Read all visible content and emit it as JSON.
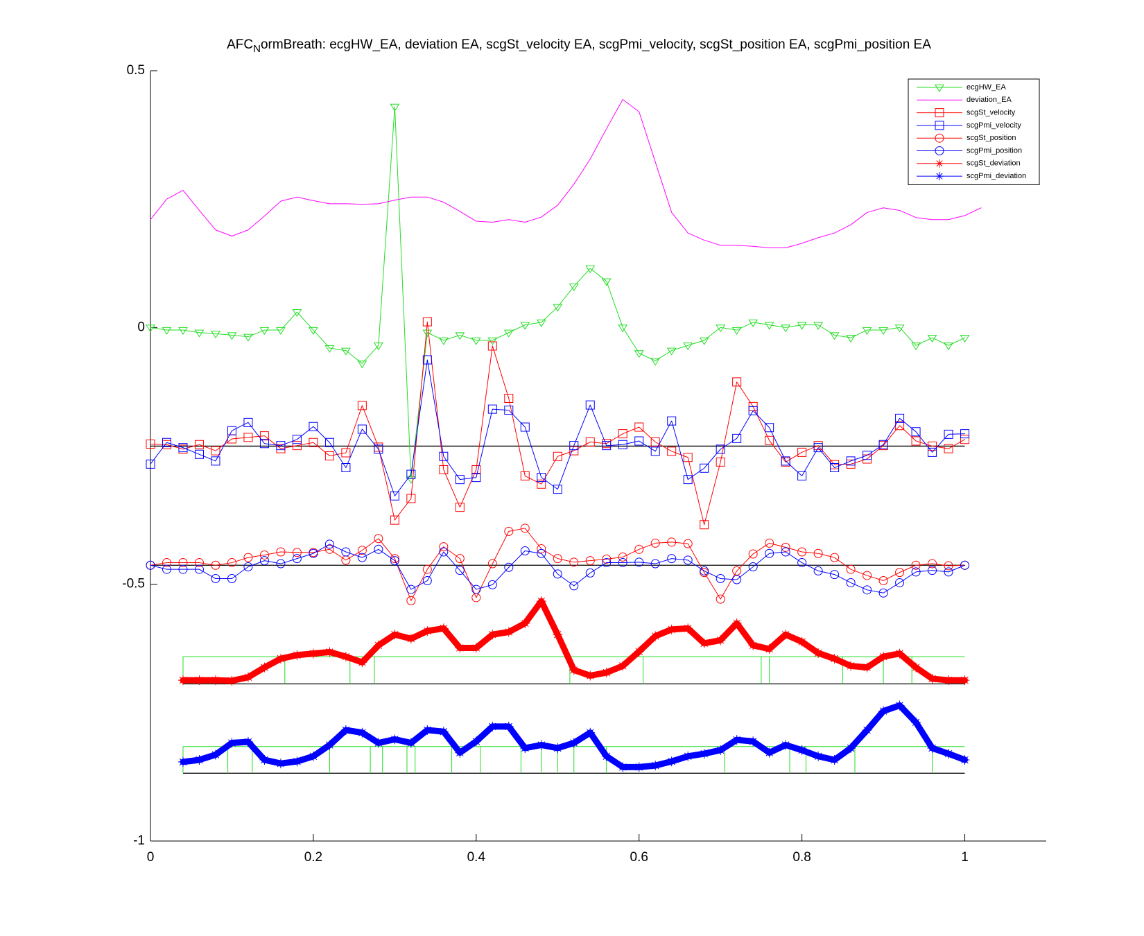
{
  "chart_data": {
    "type": "line",
    "title": {
      "before": "AFC",
      "subscript": "N",
      "after": "ormBreath: ecgHW_EA, deviation EA, scgSt_velocity EA, scgPmi_velocity, scgSt_position EA, scgPmi_position EA"
    },
    "xlim": [
      0,
      1.1
    ],
    "ylim": [
      -1,
      0.5
    ],
    "xticks": [
      0,
      0.2,
      0.4,
      0.6,
      0.8,
      1
    ],
    "yticks": [
      -1,
      -0.5,
      0,
      0.5
    ],
    "legend": "northeast",
    "x": [
      0,
      0.02,
      0.04,
      0.06,
      0.08,
      0.1,
      0.12,
      0.14,
      0.16,
      0.18,
      0.2,
      0.22,
      0.24,
      0.26,
      0.28,
      0.3,
      0.32,
      0.34,
      0.36,
      0.38,
      0.4,
      0.42,
      0.44,
      0.46,
      0.48,
      0.5,
      0.52,
      0.54,
      0.56,
      0.58,
      0.6,
      0.62,
      0.64,
      0.66,
      0.68,
      0.7,
      0.72,
      0.74,
      0.76,
      0.78,
      0.8,
      0.82,
      0.84,
      0.86,
      0.88,
      0.9,
      0.92,
      0.94,
      0.96,
      0.98,
      1
    ],
    "series": [
      {
        "name": "ecgHW_EA",
        "color": "#22dd22",
        "marker": "triangle-down",
        "linewidth": 1,
        "values": [
          0,
          -0.005,
          -0.005,
          -0.01,
          -0.012,
          -0.015,
          -0.018,
          -0.005,
          -0.005,
          0.03,
          -0.005,
          -0.04,
          -0.045,
          -0.07,
          -0.035,
          0.43,
          -0.295,
          -0.01,
          -0.025,
          -0.015,
          -0.025,
          -0.025,
          -0.01,
          0.005,
          0.01,
          0.04,
          0.08,
          0.115,
          0.09,
          0,
          -0.05,
          -0.065,
          -0.045,
          -0.035,
          -0.025,
          0,
          -0.005,
          0.01,
          0.005,
          0,
          0.005,
          0.005,
          -0.015,
          -0.02,
          -0.005,
          -0.005,
          0,
          -0.035,
          -0.02,
          -0.035,
          -0.02
        ]
      },
      {
        "name": "deviation_EA",
        "color": "#ff00ff",
        "marker": "none",
        "linewidth": 1,
        "x": [
          0,
          0.02,
          0.04,
          0.06,
          0.08,
          0.1,
          0.12,
          0.14,
          0.16,
          0.18,
          0.2,
          0.22,
          0.24,
          0.26,
          0.28,
          0.3,
          0.32,
          0.34,
          0.36,
          0.38,
          0.4,
          0.42,
          0.44,
          0.46,
          0.48,
          0.5,
          0.52,
          0.54,
          0.56,
          0.58,
          0.6,
          0.62,
          0.64,
          0.66,
          0.68,
          0.7,
          0.72,
          0.74,
          0.76,
          0.78,
          0.8,
          0.82,
          0.84,
          0.86,
          0.88,
          0.9,
          0.92,
          0.94,
          0.96,
          0.98,
          1,
          1.02
        ],
        "values": [
          0.21,
          0.25,
          0.267,
          0.228,
          0.19,
          0.178,
          0.19,
          0.217,
          0.246,
          0.254,
          0.247,
          0.241,
          0.241,
          0.24,
          0.241,
          0.248,
          0.254,
          0.254,
          0.244,
          0.226,
          0.207,
          0.205,
          0.21,
          0.205,
          0.215,
          0.238,
          0.279,
          0.328,
          0.387,
          0.444,
          0.42,
          0.322,
          0.224,
          0.184,
          0.17,
          0.16,
          0.16,
          0.158,
          0.155,
          0.155,
          0.164,
          0.175,
          0.184,
          0.2,
          0.224,
          0.233,
          0.228,
          0.214,
          0.21,
          0.21,
          0.218,
          0.233
        ]
      },
      {
        "name": "scgSt_velocity",
        "color": "#ff0000",
        "marker": "square",
        "linewidth": 1,
        "values": [
          -0.227,
          -0.228,
          -0.237,
          -0.228,
          -0.24,
          -0.217,
          -0.214,
          -0.211,
          -0.236,
          -0.23,
          -0.224,
          -0.25,
          -0.244,
          -0.152,
          -0.233,
          -0.375,
          -0.333,
          0.011,
          -0.277,
          -0.35,
          -0.277,
          -0.036,
          -0.138,
          -0.289,
          -0.305,
          -0.251,
          -0.24,
          -0.223,
          -0.226,
          -0.207,
          -0.194,
          -0.223,
          -0.241,
          -0.253,
          -0.384,
          -0.262,
          -0.106,
          -0.154,
          -0.22,
          -0.262,
          -0.243,
          -0.23,
          -0.267,
          -0.266,
          -0.256,
          -0.23,
          -0.191,
          -0.221,
          -0.231,
          -0.236,
          -0.218
        ]
      },
      {
        "name": "scgPmi_velocity",
        "color": "#0000ff",
        "marker": "square",
        "linewidth": 1,
        "values": [
          -0.266,
          -0.224,
          -0.234,
          -0.247,
          -0.26,
          -0.201,
          -0.185,
          -0.226,
          -0.23,
          -0.218,
          -0.193,
          -0.224,
          -0.273,
          -0.198,
          -0.237,
          -0.328,
          -0.286,
          -0.063,
          -0.251,
          -0.296,
          -0.292,
          -0.159,
          -0.161,
          -0.194,
          -0.292,
          -0.315,
          -0.23,
          -0.151,
          -0.23,
          -0.228,
          -0.221,
          -0.241,
          -0.182,
          -0.296,
          -0.274,
          -0.237,
          -0.216,
          -0.162,
          -0.195,
          -0.26,
          -0.289,
          -0.234,
          -0.273,
          -0.26,
          -0.249,
          -0.228,
          -0.177,
          -0.203,
          -0.243,
          -0.208,
          -0.207
        ]
      },
      {
        "name": "scgSt_position",
        "color": "#ff0000",
        "marker": "circle",
        "linewidth": 1,
        "values": [
          -0.463,
          -0.458,
          -0.458,
          -0.458,
          -0.463,
          -0.458,
          -0.448,
          -0.443,
          -0.437,
          -0.438,
          -0.438,
          -0.432,
          -0.453,
          -0.434,
          -0.411,
          -0.45,
          -0.532,
          -0.471,
          -0.427,
          -0.45,
          -0.526,
          -0.46,
          -0.397,
          -0.391,
          -0.431,
          -0.45,
          -0.457,
          -0.454,
          -0.451,
          -0.447,
          -0.432,
          -0.42,
          -0.418,
          -0.421,
          -0.477,
          -0.529,
          -0.474,
          -0.441,
          -0.42,
          -0.428,
          -0.437,
          -0.44,
          -0.448,
          -0.471,
          -0.483,
          -0.493,
          -0.477,
          -0.463,
          -0.46,
          -0.464,
          -0.463
        ]
      },
      {
        "name": "scgPmi_position",
        "color": "#0000ff",
        "marker": "circle",
        "linewidth": 1,
        "values": [
          -0.463,
          -0.471,
          -0.471,
          -0.471,
          -0.489,
          -0.489,
          -0.466,
          -0.454,
          -0.46,
          -0.45,
          -0.44,
          -0.422,
          -0.437,
          -0.448,
          -0.432,
          -0.454,
          -0.51,
          -0.493,
          -0.437,
          -0.473,
          -0.51,
          -0.501,
          -0.467,
          -0.435,
          -0.44,
          -0.48,
          -0.503,
          -0.478,
          -0.458,
          -0.458,
          -0.457,
          -0.46,
          -0.45,
          -0.453,
          -0.474,
          -0.489,
          -0.491,
          -0.466,
          -0.44,
          -0.437,
          -0.458,
          -0.474,
          -0.481,
          -0.497,
          -0.511,
          -0.517,
          -0.497,
          -0.476,
          -0.473,
          -0.476,
          -0.463
        ]
      },
      {
        "name": "scgSt_deviation",
        "color": "#ff0000",
        "marker": "asterisk",
        "linewidth": 9,
        "x": [
          0.04,
          0.06,
          0.08,
          0.1,
          0.12,
          0.14,
          0.16,
          0.18,
          0.2,
          0.22,
          0.24,
          0.26,
          0.28,
          0.3,
          0.32,
          0.34,
          0.36,
          0.38,
          0.4,
          0.42,
          0.44,
          0.46,
          0.48,
          0.5,
          0.52,
          0.54,
          0.56,
          0.58,
          0.6,
          0.62,
          0.64,
          0.66,
          0.68,
          0.7,
          0.72,
          0.74,
          0.76,
          0.78,
          0.8,
          0.82,
          0.84,
          0.86,
          0.88,
          0.9,
          0.92,
          0.94,
          0.96,
          0.98,
          1
        ],
        "values": [
          -0.687,
          -0.687,
          -0.687,
          -0.688,
          -0.681,
          -0.662,
          -0.645,
          -0.638,
          -0.635,
          -0.632,
          -0.641,
          -0.652,
          -0.619,
          -0.598,
          -0.606,
          -0.591,
          -0.586,
          -0.624,
          -0.624,
          -0.598,
          -0.593,
          -0.576,
          -0.533,
          -0.598,
          -0.667,
          -0.678,
          -0.672,
          -0.659,
          -0.631,
          -0.601,
          -0.588,
          -0.586,
          -0.615,
          -0.609,
          -0.576,
          -0.619,
          -0.626,
          -0.598,
          -0.612,
          -0.634,
          -0.645,
          -0.659,
          -0.662,
          -0.641,
          -0.635,
          -0.662,
          -0.684,
          -0.687,
          -0.687
        ]
      },
      {
        "name": "scgPmi_deviation",
        "color": "#0000ff",
        "marker": "asterisk",
        "linewidth": 9,
        "x": [
          0.04,
          0.06,
          0.08,
          0.1,
          0.12,
          0.14,
          0.16,
          0.18,
          0.2,
          0.22,
          0.24,
          0.26,
          0.28,
          0.3,
          0.32,
          0.34,
          0.36,
          0.38,
          0.4,
          0.42,
          0.44,
          0.46,
          0.48,
          0.5,
          0.52,
          0.54,
          0.56,
          0.58,
          0.6,
          0.62,
          0.64,
          0.66,
          0.68,
          0.7,
          0.72,
          0.74,
          0.76,
          0.78,
          0.8,
          0.82,
          0.84,
          0.86,
          0.88,
          0.9,
          0.92,
          0.94,
          0.96,
          0.98,
          1
        ],
        "values": [
          -0.846,
          -0.842,
          -0.832,
          -0.809,
          -0.807,
          -0.842,
          -0.849,
          -0.845,
          -0.835,
          -0.813,
          -0.784,
          -0.789,
          -0.809,
          -0.802,
          -0.809,
          -0.784,
          -0.787,
          -0.828,
          -0.806,
          -0.777,
          -0.777,
          -0.819,
          -0.813,
          -0.819,
          -0.809,
          -0.789,
          -0.835,
          -0.856,
          -0.856,
          -0.853,
          -0.845,
          -0.835,
          -0.83,
          -0.823,
          -0.803,
          -0.806,
          -0.828,
          -0.813,
          -0.823,
          -0.835,
          -0.842,
          -0.819,
          -0.784,
          -0.747,
          -0.736,
          -0.769,
          -0.819,
          -0.83,
          -0.842
        ]
      }
    ],
    "hlines": [
      {
        "y": -0.231,
        "x": [
          0,
          1
        ],
        "color": "#000000"
      },
      {
        "y": -0.463,
        "x": [
          0,
          1
        ],
        "color": "#000000"
      },
      {
        "y": -0.694,
        "x": [
          0.04,
          1
        ],
        "color": "#000000"
      },
      {
        "y": -0.868,
        "x": [
          0.04,
          1
        ],
        "color": "#000000"
      }
    ],
    "steps": [
      {
        "high": -0.641,
        "low": -0.694,
        "x": [
          0.04,
          1
        ],
        "color": "#22dd22",
        "edges": [
          0.04,
          0.165,
          0.245,
          0.275,
          0.515,
          0.605,
          0.75,
          0.76,
          0.85,
          0.9,
          0.935
        ]
      },
      {
        "high": -0.816,
        "low": -0.868,
        "x": [
          0.04,
          1
        ],
        "color": "#22dd22",
        "edges": [
          0.04,
          0.095,
          0.125,
          0.22,
          0.27,
          0.285,
          0.315,
          0.325,
          0.37,
          0.405,
          0.455,
          0.48,
          0.5,
          0.52,
          0.56,
          0.705,
          0.785,
          0.805,
          0.865,
          0.96
        ]
      }
    ]
  }
}
